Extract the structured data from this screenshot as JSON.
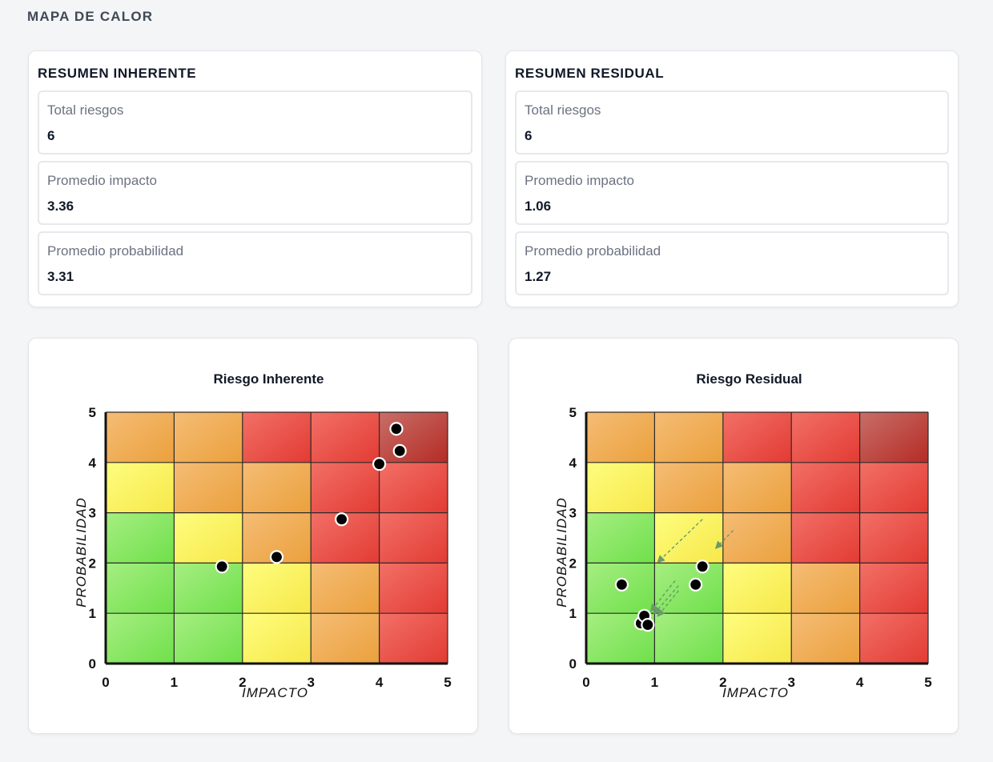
{
  "page": {
    "title": "MAPA DE CALOR"
  },
  "summaries": [
    {
      "title": "RESUMEN INHERENTE",
      "stats": [
        {
          "label": "Total riesgos",
          "value": "6"
        },
        {
          "label": "Promedio impacto",
          "value": "3.36"
        },
        {
          "label": "Promedio probabilidad",
          "value": "3.31"
        }
      ]
    },
    {
      "title": "RESUMEN RESIDUAL",
      "stats": [
        {
          "label": "Total riesgos",
          "value": "6"
        },
        {
          "label": "Promedio impacto",
          "value": "1.06"
        },
        {
          "label": "Promedio probabilidad",
          "value": "1.27"
        }
      ]
    }
  ],
  "chart_data": [
    {
      "type": "heatmap",
      "title": "Riesgo Inherente",
      "xlabel": "IMPACTO",
      "ylabel": "PROBABILIDAD",
      "xlim": [
        0,
        5
      ],
      "ylim": [
        0,
        5
      ],
      "xticks": [
        "0",
        "1",
        "2",
        "3",
        "4",
        "5"
      ],
      "yticks": [
        "0",
        "1",
        "2",
        "3",
        "4",
        "5"
      ],
      "grid": true,
      "cells_bottom_to_top": [
        [
          "green",
          "green",
          "yellow",
          "orange",
          "red"
        ],
        [
          "green",
          "green",
          "yellow",
          "orange",
          "red"
        ],
        [
          "green",
          "yellow",
          "orange",
          "red",
          "red"
        ],
        [
          "yellow",
          "orange",
          "orange",
          "red",
          "red"
        ],
        [
          "orange",
          "orange",
          "red",
          "red",
          "darkred"
        ]
      ],
      "points": [
        {
          "x": 1.7,
          "y": 1.93
        },
        {
          "x": 2.5,
          "y": 2.12
        },
        {
          "x": 3.45,
          "y": 2.87
        },
        {
          "x": 4.0,
          "y": 3.97
        },
        {
          "x": 4.25,
          "y": 4.67
        },
        {
          "x": 4.3,
          "y": 4.23
        }
      ]
    },
    {
      "type": "heatmap",
      "title": "Riesgo Residual",
      "xlabel": "IMPACTO",
      "ylabel": "PROBABILIDAD",
      "xlim": [
        0,
        5
      ],
      "ylim": [
        0,
        5
      ],
      "xticks": [
        "0",
        "1",
        "2",
        "3",
        "4",
        "5"
      ],
      "yticks": [
        "0",
        "1",
        "2",
        "3",
        "4",
        "5"
      ],
      "grid": true,
      "cells_bottom_to_top": [
        [
          "green",
          "green",
          "yellow",
          "orange",
          "red"
        ],
        [
          "green",
          "green",
          "yellow",
          "orange",
          "red"
        ],
        [
          "green",
          "yellow",
          "orange",
          "red",
          "red"
        ],
        [
          "yellow",
          "orange",
          "orange",
          "red",
          "red"
        ],
        [
          "orange",
          "orange",
          "red",
          "red",
          "darkred"
        ]
      ],
      "points": [
        {
          "x": 0.52,
          "y": 1.57
        },
        {
          "x": 0.8,
          "y": 0.8
        },
        {
          "x": 0.85,
          "y": 0.95
        },
        {
          "x": 0.9,
          "y": 0.77
        },
        {
          "x": 1.6,
          "y": 1.57
        },
        {
          "x": 1.7,
          "y": 1.93
        }
      ],
      "arrows": [
        {
          "x1": 1.7,
          "y1": 2.87,
          "x2": 1.05,
          "y2": 2.02
        },
        {
          "x1": 1.3,
          "y1": 1.65,
          "x2": 0.95,
          "y2": 1.05
        },
        {
          "x1": 1.35,
          "y1": 1.55,
          "x2": 1.0,
          "y2": 1.0
        },
        {
          "x1": 1.35,
          "y1": 1.45,
          "x2": 1.05,
          "y2": 0.95
        },
        {
          "x1": 2.15,
          "y1": 2.65,
          "x2": 1.9,
          "y2": 2.3
        }
      ]
    }
  ],
  "colors": {
    "green": [
      "#a6ee82",
      "#6fe04a"
    ],
    "yellow": [
      "#fdfd7e",
      "#f7e84a"
    ],
    "orange": [
      "#f5bd75",
      "#eba03c"
    ],
    "red": [
      "#f27067",
      "#e23b33"
    ],
    "darkred": [
      "#c86e68",
      "#b52c25"
    ]
  }
}
